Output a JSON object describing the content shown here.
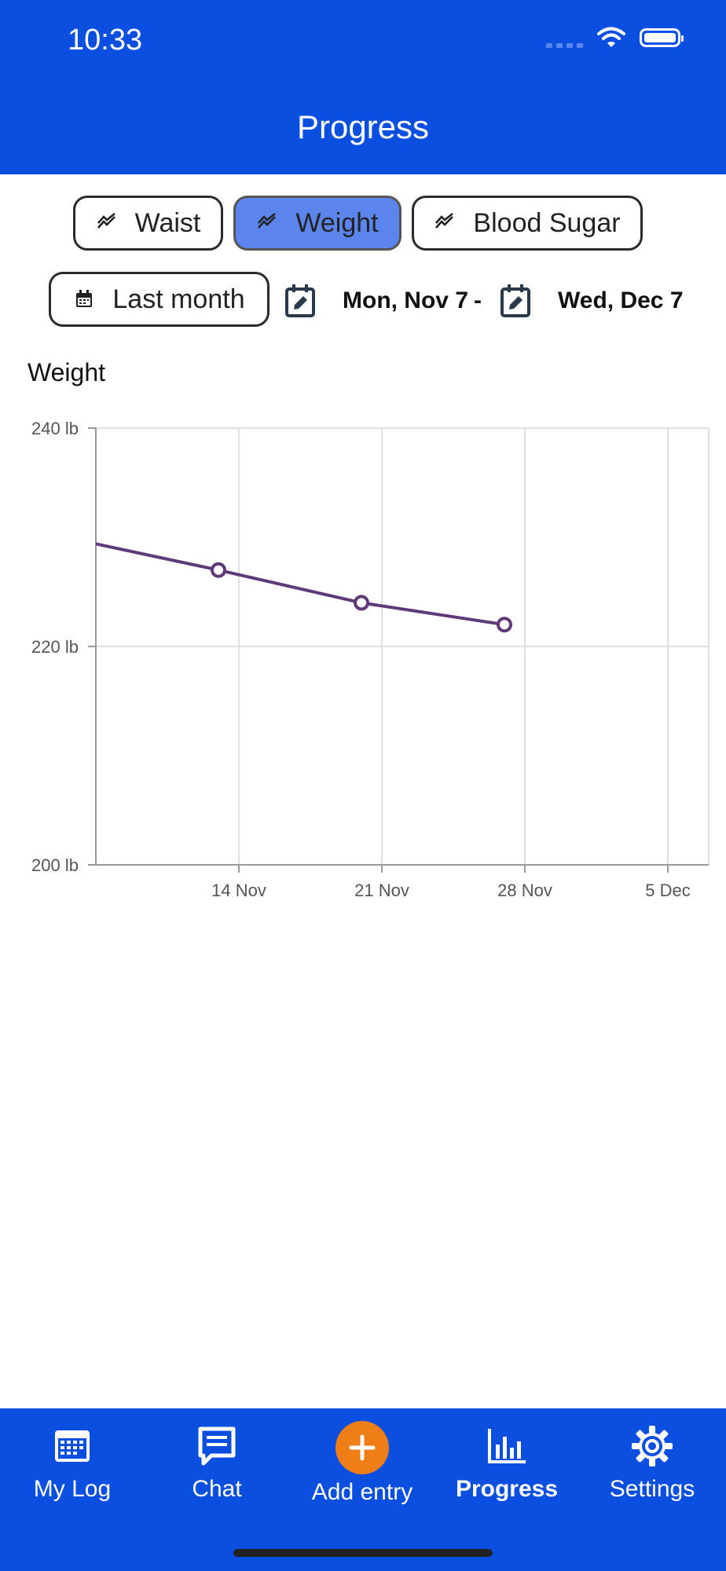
{
  "status_bar": {
    "time": "10:33"
  },
  "header": {
    "title": "Progress"
  },
  "metric_tabs": [
    {
      "label": "Waist",
      "active": false
    },
    {
      "label": "Weight",
      "active": true
    },
    {
      "label": "Blood Sugar",
      "active": false
    }
  ],
  "range": {
    "preset_label": "Last month",
    "start_date": "Mon, Nov 7",
    "separator": "-",
    "end_date": "Wed, Dec 7"
  },
  "chart_title": "Weight",
  "chart_data": {
    "type": "line",
    "ylim": [
      200,
      240
    ],
    "y_ticks": [
      {
        "value": 240,
        "label": "240 lb"
      },
      {
        "value": 220,
        "label": "220 lb"
      },
      {
        "value": 200,
        "label": "200 lb"
      }
    ],
    "x_ticks": [
      "14 Nov",
      "21 Nov",
      "28 Nov",
      "5 Dec"
    ],
    "series": [
      {
        "color": "#5e3a78",
        "points": [
          {
            "x": "7 Nov",
            "y": 229.4
          },
          {
            "x": "13 Nov",
            "y": 227
          },
          {
            "x": "20 Nov",
            "y": 224
          },
          {
            "x": "27 Nov",
            "y": 222
          }
        ]
      }
    ]
  },
  "tab_bar": {
    "items": [
      {
        "label": "My Log",
        "icon": "calendar-icon",
        "active": false
      },
      {
        "label": "Chat",
        "icon": "chat-icon",
        "active": false
      },
      {
        "label": "Add entry",
        "icon": "plus-icon",
        "active": false
      },
      {
        "label": "Progress",
        "icon": "bar-chart-icon",
        "active": true
      },
      {
        "label": "Settings",
        "icon": "gear-icon",
        "active": false
      }
    ]
  },
  "colors": {
    "primary": "#0a4fe0",
    "active_chip": "#5b85ec",
    "accent": "#f07e17",
    "series": "#5e3a78"
  }
}
